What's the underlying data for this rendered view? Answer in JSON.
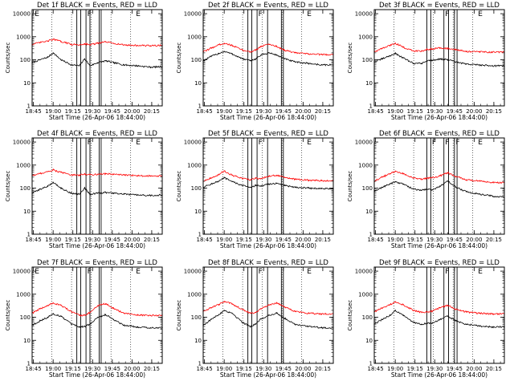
{
  "figure": {
    "title_prefix": "Det",
    "title_suffix": "BLACK = Events, RED = LLD",
    "ylabel": "Counts/sec",
    "xlabel": "Start Time (26-Apr-06 18:44:00)",
    "yticks": [
      "1",
      "10",
      "100",
      "1000",
      "10000"
    ],
    "xticks": [
      "18:45",
      "19:00",
      "19:15",
      "19:30",
      "19:45",
      "20:00",
      "20:15"
    ],
    "colors": {
      "events": "#000000",
      "lld": "#ff0000",
      "axis": "#000000"
    }
  },
  "chart_data": [
    {
      "type": "line",
      "title": "Det 1f BLACK = Events, RED = LLD",
      "detector": "1f",
      "xlabel": "Start Time (26-Apr-06 18:44:00)",
      "ylabel": "Counts/sec",
      "yscale": "log",
      "ylim": [
        1,
        15000
      ],
      "xlim_min": [
        0,
        99
      ],
      "x_min": [
        0,
        6,
        12,
        16,
        22,
        30,
        36,
        40,
        44,
        50,
        56,
        62,
        70,
        80,
        90,
        99
      ],
      "series": [
        {
          "name": "Events",
          "color": "#000000",
          "values": [
            75,
            100,
            130,
            200,
            100,
            60,
            55,
            110,
            55,
            75,
            90,
            75,
            60,
            55,
            48,
            50
          ]
        },
        {
          "name": "LLD",
          "color": "#ff0000",
          "values": [
            470,
            560,
            650,
            780,
            620,
            470,
            440,
            500,
            450,
            520,
            600,
            520,
            440,
            420,
            410,
            420
          ]
        }
      ],
      "markers": [
        {
          "x_min": 34,
          "label": ""
        },
        {
          "x_min": 37,
          "label": ""
        },
        {
          "x_min": 41,
          "label": "F"
        },
        {
          "x_min": 44,
          "label": ""
        },
        {
          "x_min": 51,
          "label": ""
        },
        {
          "x_min": 52.5,
          "label": ""
        }
      ],
      "dotted_x_min": [
        15,
        30,
        45,
        60,
        75
      ],
      "extra_labels": [
        {
          "x_min": 79,
          "label": "E"
        },
        {
          "x_min": 2,
          "label": "E"
        }
      ]
    },
    {
      "type": "line",
      "title": "Det 2f BLACK = Events, RED = LLD",
      "detector": "2f",
      "xlabel": "Start Time (26-Apr-06 18:44:00)",
      "ylabel": "Counts/sec",
      "yscale": "log",
      "ylim": [
        1,
        15000
      ],
      "xlim_min": [
        0,
        99
      ],
      "x_min": [
        0,
        6,
        12,
        16,
        22,
        30,
        36,
        40,
        44,
        50,
        56,
        62,
        70,
        80,
        90,
        99
      ],
      "series": [
        {
          "name": "Events",
          "color": "#000000",
          "values": [
            90,
            140,
            190,
            230,
            180,
            110,
            90,
            110,
            160,
            200,
            160,
            110,
            80,
            70,
            60,
            60
          ]
        },
        {
          "name": "LLD",
          "color": "#ff0000",
          "values": [
            220,
            320,
            450,
            520,
            420,
            260,
            220,
            270,
            380,
            480,
            380,
            260,
            200,
            180,
            170,
            170
          ]
        }
      ],
      "markers": [
        {
          "x_min": 34,
          "label": ""
        },
        {
          "x_min": 37,
          "label": ""
        },
        {
          "x_min": 41,
          "label": "F"
        },
        {
          "x_min": 49,
          "label": ""
        },
        {
          "x_min": 59.5,
          "label": ""
        },
        {
          "x_min": 61,
          "label": ""
        }
      ],
      "dotted_x_min": [
        15,
        30,
        45,
        60,
        75
      ],
      "extra_labels": [
        {
          "x_min": 79,
          "label": "E"
        }
      ]
    },
    {
      "type": "line",
      "title": "Det 3f BLACK = Events, RED = LLD",
      "detector": "3f",
      "xlabel": "Start Time (26-Apr-06 18:44:00)",
      "ylabel": "Counts/sec",
      "yscale": "log",
      "ylim": [
        1,
        15000
      ],
      "xlim_min": [
        0,
        99
      ],
      "x_min": [
        0,
        6,
        12,
        16,
        22,
        30,
        36,
        40,
        44,
        50,
        56,
        62,
        70,
        80,
        90,
        99
      ],
      "series": [
        {
          "name": "Events",
          "color": "#000000",
          "values": [
            80,
            110,
            150,
            190,
            120,
            70,
            70,
            90,
            95,
            110,
            100,
            80,
            65,
            60,
            55,
            55
          ]
        },
        {
          "name": "LLD",
          "color": "#ff0000",
          "values": [
            220,
            310,
            420,
            530,
            350,
            240,
            240,
            280,
            300,
            330,
            310,
            270,
            230,
            220,
            215,
            215
          ]
        }
      ],
      "markers": [
        {
          "x_min": 40,
          "label": ""
        },
        {
          "x_min": 43,
          "label": ""
        },
        {
          "x_min": 53,
          "label": "F"
        },
        {
          "x_min": 56.5,
          "label": ""
        },
        {
          "x_min": 61,
          "label": ""
        },
        {
          "x_min": 63,
          "label": ""
        }
      ],
      "dotted_x_min": [
        15,
        30,
        45,
        60,
        75
      ],
      "extra_labels": [
        {
          "x_min": 79,
          "label": "E"
        }
      ]
    },
    {
      "type": "line",
      "title": "Det 4f BLACK = Events, RED = LLD",
      "detector": "4f",
      "xlabel": "Start Time (26-Apr-06 18:44:00)",
      "ylabel": "Counts/sec",
      "yscale": "log",
      "ylim": [
        1,
        15000
      ],
      "xlim_min": [
        0,
        99
      ],
      "x_min": [
        0,
        6,
        12,
        16,
        22,
        30,
        36,
        40,
        44,
        50,
        56,
        62,
        70,
        80,
        90,
        99
      ],
      "series": [
        {
          "name": "Events",
          "color": "#000000",
          "values": [
            60,
            90,
            120,
            180,
            100,
            60,
            55,
            100,
            55,
            60,
            65,
            60,
            55,
            50,
            48,
            50
          ]
        },
        {
          "name": "LLD",
          "color": "#ff0000",
          "values": [
            350,
            430,
            520,
            620,
            480,
            380,
            360,
            410,
            380,
            400,
            420,
            400,
            370,
            350,
            340,
            340
          ]
        }
      ],
      "markers": [
        {
          "x_min": 34,
          "label": ""
        },
        {
          "x_min": 37,
          "label": ""
        },
        {
          "x_min": 41,
          "label": "F"
        },
        {
          "x_min": 44,
          "label": ""
        },
        {
          "x_min": 51,
          "label": ""
        },
        {
          "x_min": 52.5,
          "label": ""
        }
      ],
      "dotted_x_min": [
        15,
        30,
        45,
        60,
        75
      ],
      "extra_labels": [
        {
          "x_min": 79,
          "label": "E"
        }
      ]
    },
    {
      "type": "line",
      "title": "Det 5f BLACK = Events, RED = LLD",
      "detector": "5f",
      "xlabel": "Start Time (26-Apr-06 18:44:00)",
      "ylabel": "Counts/sec",
      "yscale": "log",
      "ylim": [
        1,
        15000
      ],
      "xlim_min": [
        0,
        99
      ],
      "x_min": [
        0,
        6,
        12,
        16,
        22,
        30,
        36,
        40,
        44,
        50,
        56,
        62,
        70,
        80,
        90,
        99
      ],
      "series": [
        {
          "name": "Events",
          "color": "#000000",
          "values": [
            110,
            150,
            200,
            280,
            190,
            130,
            110,
            130,
            120,
            150,
            160,
            130,
            110,
            100,
            95,
            95
          ]
        },
        {
          "name": "LLD",
          "color": "#ff0000",
          "values": [
            200,
            280,
            380,
            560,
            360,
            260,
            230,
            270,
            260,
            330,
            360,
            290,
            240,
            220,
            210,
            210
          ]
        }
      ],
      "markers": [
        {
          "x_min": 34,
          "label": ""
        },
        {
          "x_min": 37,
          "label": ""
        },
        {
          "x_min": 41,
          "label": "F"
        },
        {
          "x_min": 49,
          "label": ""
        },
        {
          "x_min": 59.5,
          "label": ""
        },
        {
          "x_min": 61,
          "label": ""
        }
      ],
      "dotted_x_min": [
        15,
        30,
        45,
        60,
        75
      ],
      "extra_labels": [
        {
          "x_min": 79,
          "label": "E"
        }
      ]
    },
    {
      "type": "line",
      "title": "Det 6f BLACK = Events, RED = LLD",
      "detector": "6f",
      "xlabel": "Start Time (26-Apr-06 18:44:00)",
      "ylabel": "Counts/sec",
      "yscale": "log",
      "ylim": [
        1,
        15000
      ],
      "xlim_min": [
        0,
        99
      ],
      "x_min": [
        0,
        6,
        12,
        16,
        22,
        30,
        36,
        40,
        44,
        50,
        56,
        62,
        70,
        80,
        90,
        99
      ],
      "series": [
        {
          "name": "Events",
          "color": "#000000",
          "values": [
            70,
            110,
            150,
            190,
            150,
            90,
            80,
            90,
            85,
            120,
            200,
            110,
            70,
            55,
            45,
            40
          ]
        },
        {
          "name": "LLD",
          "color": "#ff0000",
          "values": [
            200,
            300,
            420,
            530,
            430,
            270,
            240,
            270,
            280,
            340,
            470,
            320,
            230,
            200,
            175,
            170
          ]
        }
      ],
      "markers": [
        {
          "x_min": 40,
          "label": ""
        },
        {
          "x_min": 43,
          "label": "F"
        },
        {
          "x_min": 53,
          "label": "F"
        },
        {
          "x_min": 56.5,
          "label": ""
        },
        {
          "x_min": 61,
          "label": "F"
        },
        {
          "x_min": 63,
          "label": ""
        }
      ],
      "dotted_x_min": [
        15,
        30,
        45,
        60,
        75
      ],
      "extra_labels": [
        {
          "x_min": 79,
          "label": "E"
        }
      ]
    },
    {
      "type": "line",
      "title": "Det 7f BLACK = Events, RED = LLD",
      "detector": "7f",
      "xlabel": "Start Time (26-Apr-06 18:44:00)",
      "ylabel": "Counts/sec",
      "yscale": "log",
      "ylim": [
        1,
        15000
      ],
      "xlim_min": [
        0,
        99
      ],
      "x_min": [
        0,
        6,
        12,
        16,
        22,
        30,
        36,
        40,
        44,
        50,
        56,
        62,
        70,
        80,
        90,
        99
      ],
      "series": [
        {
          "name": "Events",
          "color": "#000000",
          "values": [
            45,
            70,
            100,
            140,
            110,
            50,
            38,
            40,
            50,
            100,
            130,
            80,
            45,
            38,
            35,
            35
          ]
        },
        {
          "name": "LLD",
          "color": "#ff0000",
          "values": [
            150,
            230,
            320,
            420,
            330,
            170,
            120,
            125,
            160,
            320,
            390,
            240,
            150,
            125,
            120,
            120
          ]
        }
      ],
      "markers": [
        {
          "x_min": 34,
          "label": ""
        },
        {
          "x_min": 37,
          "label": ""
        },
        {
          "x_min": 41,
          "label": "F"
        },
        {
          "x_min": 44,
          "label": ""
        },
        {
          "x_min": 51,
          "label": ""
        },
        {
          "x_min": 52.5,
          "label": ""
        }
      ],
      "dotted_x_min": [
        15,
        30,
        45,
        60,
        75
      ],
      "extra_labels": [
        {
          "x_min": 79,
          "label": "E"
        },
        {
          "x_min": 2,
          "label": "E"
        }
      ]
    },
    {
      "type": "line",
      "title": "Det 8f BLACK = Events, RED = LLD",
      "detector": "8f",
      "xlabel": "Start Time (26-Apr-06 18:44:00)",
      "ylabel": "Counts/sec",
      "yscale": "log",
      "ylim": [
        1,
        15000
      ],
      "xlim_min": [
        0,
        99
      ],
      "x_min": [
        0,
        6,
        12,
        16,
        22,
        30,
        36,
        40,
        44,
        50,
        56,
        62,
        70,
        80,
        90,
        99
      ],
      "series": [
        {
          "name": "Events",
          "color": "#000000",
          "values": [
            45,
            80,
            130,
            200,
            150,
            60,
            40,
            50,
            85,
            120,
            150,
            90,
            50,
            40,
            35,
            35
          ]
        },
        {
          "name": "LLD",
          "color": "#ff0000",
          "values": [
            180,
            260,
            360,
            480,
            380,
            220,
            150,
            160,
            240,
            340,
            420,
            280,
            180,
            150,
            140,
            140
          ]
        }
      ],
      "markers": [
        {
          "x_min": 34,
          "label": ""
        },
        {
          "x_min": 37,
          "label": ""
        },
        {
          "x_min": 41,
          "label": "F"
        },
        {
          "x_min": 49,
          "label": ""
        },
        {
          "x_min": 59.5,
          "label": ""
        },
        {
          "x_min": 61,
          "label": ""
        }
      ],
      "dotted_x_min": [
        15,
        30,
        45,
        60,
        75
      ],
      "extra_labels": [
        {
          "x_min": 79,
          "label": "E"
        }
      ]
    },
    {
      "type": "line",
      "title": "Det 9f BLACK = Events, RED = LLD",
      "detector": "9f",
      "xlabel": "Start Time (26-Apr-06 18:44:00)",
      "ylabel": "Counts/sec",
      "yscale": "log",
      "ylim": [
        1,
        15000
      ],
      "xlim_min": [
        0,
        99
      ],
      "x_min": [
        0,
        6,
        12,
        16,
        22,
        30,
        36,
        40,
        44,
        50,
        56,
        62,
        70,
        80,
        90,
        99
      ],
      "series": [
        {
          "name": "Events",
          "color": "#000000",
          "values": [
            50,
            80,
            120,
            200,
            120,
            60,
            50,
            55,
            55,
            80,
            110,
            70,
            50,
            42,
            38,
            38
          ]
        },
        {
          "name": "LLD",
          "color": "#ff0000",
          "values": [
            170,
            250,
            350,
            480,
            350,
            200,
            160,
            170,
            180,
            260,
            330,
            220,
            170,
            150,
            140,
            140
          ]
        }
      ],
      "markers": [
        {
          "x_min": 40,
          "label": ""
        },
        {
          "x_min": 43,
          "label": ""
        },
        {
          "x_min": 53,
          "label": "F"
        },
        {
          "x_min": 56.5,
          "label": ""
        },
        {
          "x_min": 61,
          "label": ""
        },
        {
          "x_min": 63,
          "label": ""
        }
      ],
      "dotted_x_min": [
        15,
        30,
        45,
        60,
        75
      ],
      "extra_labels": [
        {
          "x_min": 79,
          "label": "E"
        }
      ]
    }
  ]
}
